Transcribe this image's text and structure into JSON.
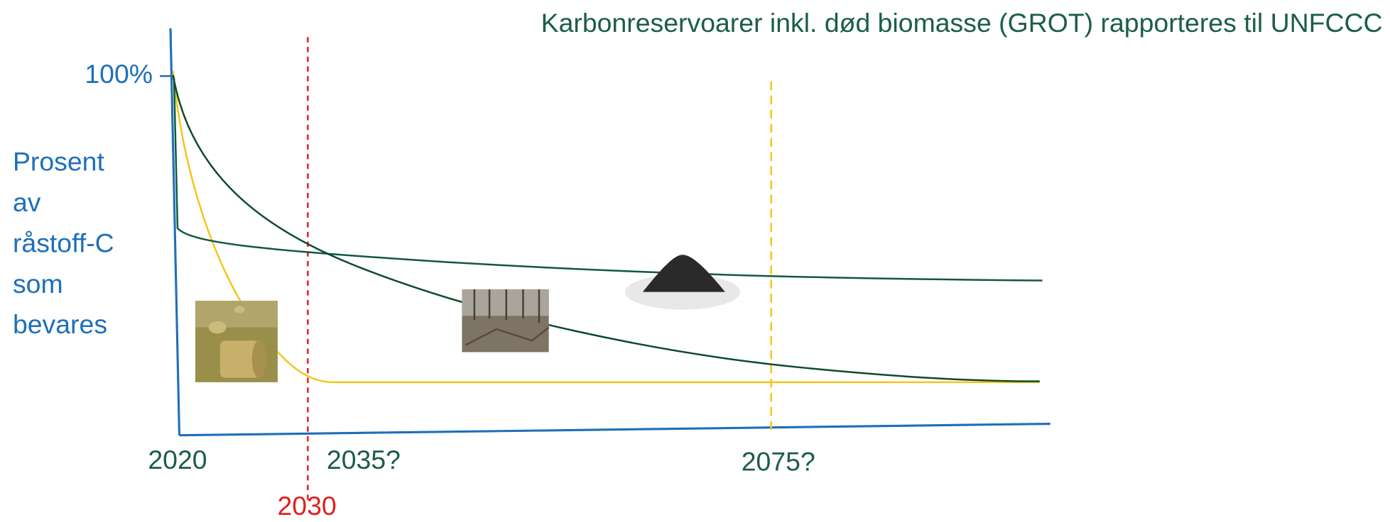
{
  "title": "Karbonreservoarer inkl. død biomasse (GROT) rapporteres til UNFCCC",
  "y_axis": {
    "top_label": "100%",
    "label_lines": [
      "Prosent",
      "av",
      "råstoff-C",
      "som",
      "bevares"
    ]
  },
  "x_axis": {
    "labels": [
      "2020",
      "2035?",
      "2075?"
    ],
    "marker_label": "2030"
  }
}
